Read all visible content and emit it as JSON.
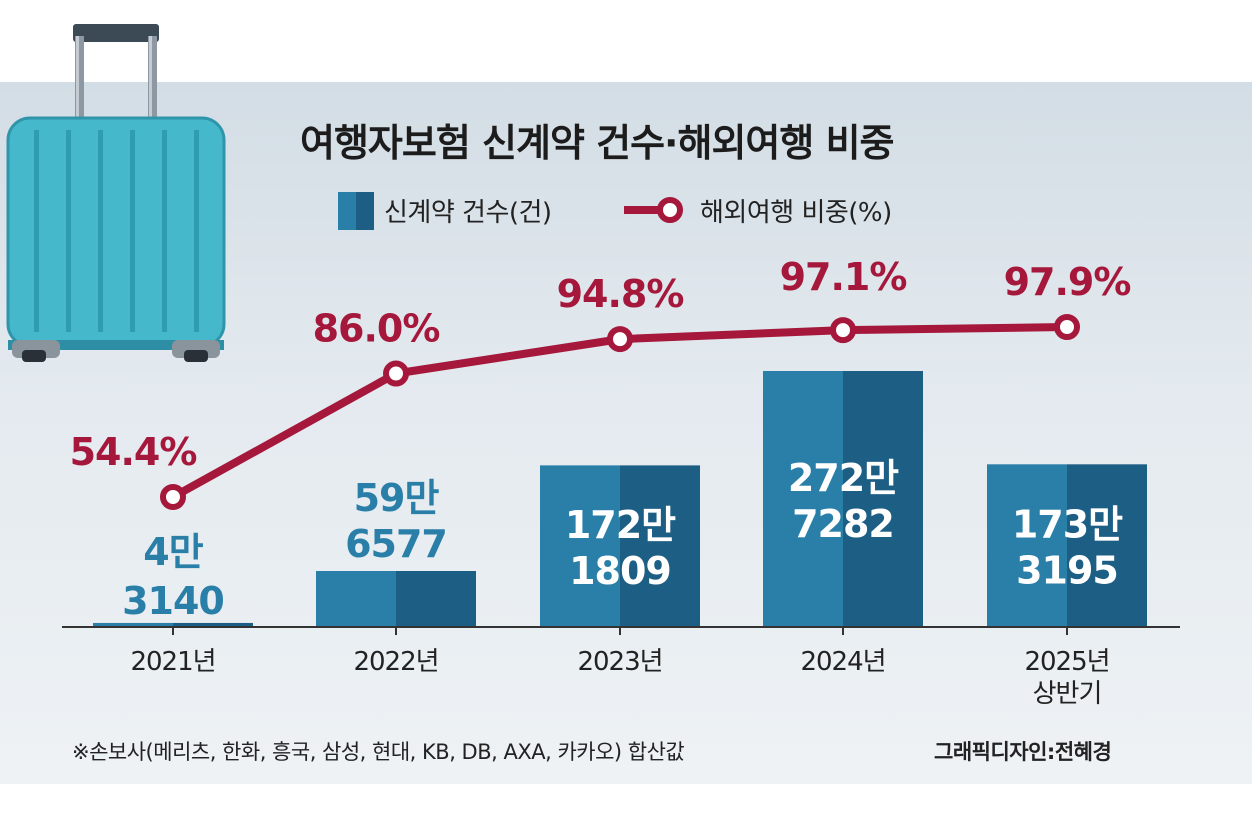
{
  "chart_data": {
    "type": "bar+line",
    "title": "여행자보험 신계약 건수·해외여행 비중",
    "categories": [
      "2021년",
      "2022년",
      "2023년",
      "2024년",
      "2025년 상반기"
    ],
    "category_lines": [
      [
        "2021년"
      ],
      [
        "2022년"
      ],
      [
        "2023년"
      ],
      [
        "2024년"
      ],
      [
        "2025년",
        "상반기"
      ]
    ],
    "series": [
      {
        "name": "신계약 건수(건)",
        "type": "bar",
        "values": [
          43140,
          596577,
          1721809,
          2727282,
          1733195
        ],
        "labels": [
          [
            "4만",
            "3140"
          ],
          [
            "59만",
            "6577"
          ],
          [
            "172만",
            "1809"
          ],
          [
            "272만",
            "7282"
          ],
          [
            "173만",
            "3195"
          ]
        ]
      },
      {
        "name": "해외여행 비중(%)",
        "type": "line",
        "values": [
          54.4,
          86.0,
          94.8,
          97.1,
          97.9
        ],
        "labels": [
          "54.4%",
          "86.0%",
          "94.8%",
          "97.1%",
          "97.9%"
        ]
      }
    ],
    "legend": "top"
  },
  "footnote": "※손보사(메리츠, 한화, 흥국, 삼성, 현대, KB, DB, AXA, 카카오) 합산값",
  "credit": "그래픽디자인:전혜경",
  "colors": {
    "bar_light": "#2a7fa8",
    "bar_dark": "#1d5e85",
    "line": "#a5183b",
    "label_outside": "#2a7fa8",
    "label_inside": "#ffffff",
    "suitcase": "#3fb3c9"
  },
  "icons": [
    "suitcase-icon"
  ]
}
